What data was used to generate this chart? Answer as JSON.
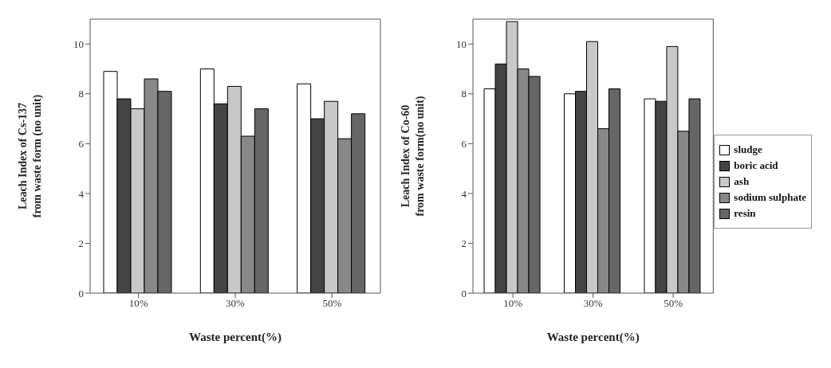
{
  "chart_data": [
    {
      "type": "bar",
      "categories": [
        "10%",
        "30%",
        "50%"
      ],
      "xlabel": "Waste percent(%)",
      "ylabel": "Leach Index of Cs-137\nfrom waste form (no unit)",
      "ylim": [
        0,
        11
      ],
      "yticks": [
        0,
        2,
        4,
        6,
        8,
        10
      ],
      "grid": false,
      "legend": false,
      "series": [
        {
          "color": "#ffffff",
          "values": [
            8.9,
            9.0,
            8.4
          ]
        },
        {
          "color": "#444444",
          "values": [
            7.8,
            7.6,
            7.0
          ]
        },
        {
          "color": "#c8c8c8",
          "values": [
            7.4,
            8.3,
            7.7
          ]
        },
        {
          "color": "#888888",
          "values": [
            8.6,
            6.3,
            6.2
          ]
        },
        {
          "color": "#666666",
          "values": [
            8.1,
            7.4,
            7.2
          ]
        }
      ]
    },
    {
      "type": "bar",
      "categories": [
        "10%",
        "30%",
        "50%"
      ],
      "xlabel": "Waste percent(%)",
      "ylabel": "Leach Index of Co-60\nfrom waste form(no unit)",
      "ylim": [
        0,
        11
      ],
      "yticks": [
        0,
        2,
        4,
        6,
        8,
        10
      ],
      "grid": false,
      "legend": "right",
      "series": [
        {
          "name": "sludge",
          "color": "#ffffff",
          "values": [
            8.2,
            8.0,
            7.8
          ]
        },
        {
          "name": "boric acid",
          "color": "#444444",
          "values": [
            9.2,
            8.1,
            7.7
          ]
        },
        {
          "name": "ash",
          "color": "#c8c8c8",
          "values": [
            10.9,
            10.1,
            9.9
          ]
        },
        {
          "name": "sodium sulphate",
          "color": "#888888",
          "values": [
            9.0,
            6.6,
            6.5
          ]
        },
        {
          "name": "resin",
          "color": "#666666",
          "values": [
            8.7,
            8.2,
            7.8
          ]
        }
      ]
    }
  ]
}
